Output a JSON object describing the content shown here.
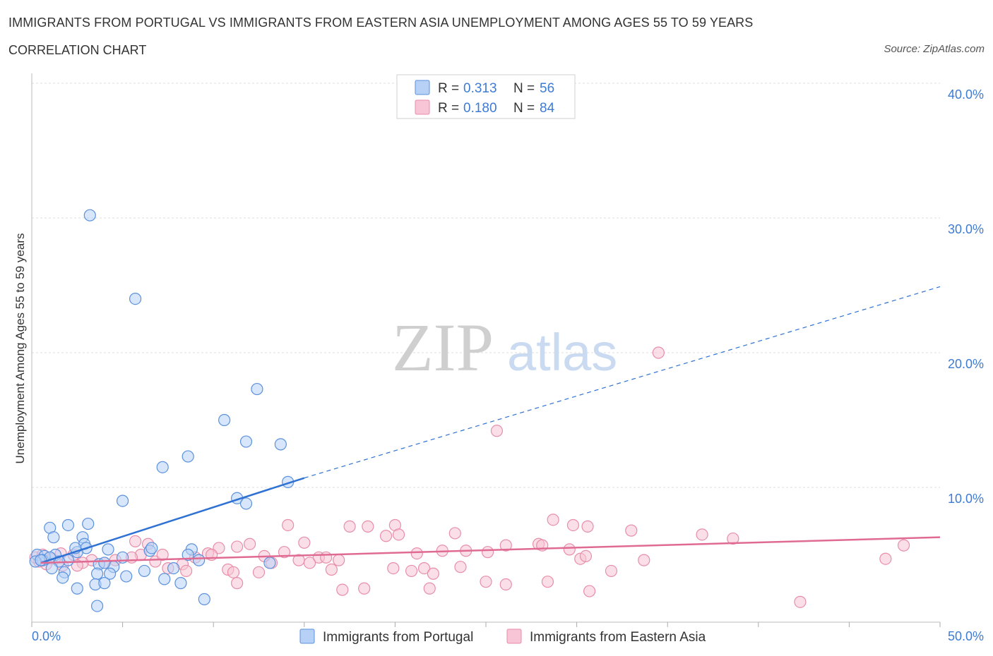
{
  "header": {
    "title": "IMMIGRANTS FROM PORTUGAL VS IMMIGRANTS FROM EASTERN ASIA UNEMPLOYMENT AMONG AGES 55 TO 59 YEARS",
    "subtitle": "CORRELATION CHART",
    "source": "Source: ZipAtlas.com"
  },
  "watermark": {
    "zip": "ZIP",
    "atlas": "atlas"
  },
  "colors": {
    "blue_fill": "#b6d1f5",
    "blue_stroke": "#5b91dd",
    "blue_line": "#2f72d3",
    "pink_fill": "#f7c5d5",
    "pink_stroke": "#e88ea9",
    "pink_line": "#e06b92",
    "axis_label": "#3e7bd4",
    "grid": "#dddddd"
  },
  "legend": {
    "r_label": "R =",
    "n_label": "N =",
    "rows": [
      {
        "r": "0.313",
        "n": "56"
      },
      {
        "r": "0.180",
        "n": "84"
      }
    ]
  },
  "chart_data": {
    "type": "scatter",
    "title": "IMMIGRANTS FROM PORTUGAL VS IMMIGRANTS FROM EASTERN ASIA UNEMPLOYMENT AMONG AGES 55 TO 59 YEARS",
    "xlabel": "",
    "ylabel": "Unemployment Among Ages 55 to 59 years",
    "xlim": [
      0,
      50
    ],
    "ylim": [
      0,
      40
    ],
    "x_tick_labels": [
      "0.0%",
      "50.0%"
    ],
    "y_tick_labels": [
      "10.0%",
      "20.0%",
      "30.0%",
      "40.0%"
    ],
    "y_gridlines": [
      10,
      20,
      30,
      40
    ],
    "grid": true,
    "legend_position": "top-center",
    "series": [
      {
        "name": "Immigrants from Portugal",
        "color": "#5b91dd",
        "trend": {
          "x": [
            0.5,
            15.0,
            50.0
          ],
          "y": [
            4.4,
            10.7,
            24.9
          ]
        },
        "points": [
          [
            3.2,
            30.2
          ],
          [
            5.7,
            24.0
          ],
          [
            12.4,
            17.3
          ],
          [
            10.6,
            15.0
          ],
          [
            11.8,
            13.4
          ],
          [
            13.7,
            13.2
          ],
          [
            8.6,
            12.3
          ],
          [
            7.2,
            11.5
          ],
          [
            14.1,
            10.4
          ],
          [
            11.3,
            9.2
          ],
          [
            11.8,
            8.8
          ],
          [
            5.0,
            9.0
          ],
          [
            2.0,
            7.2
          ],
          [
            3.1,
            7.3
          ],
          [
            1.0,
            7.0
          ],
          [
            1.2,
            6.3
          ],
          [
            2.8,
            6.3
          ],
          [
            2.9,
            5.8
          ],
          [
            3.0,
            5.5
          ],
          [
            4.2,
            5.4
          ],
          [
            6.5,
            5.3
          ],
          [
            8.8,
            5.4
          ],
          [
            2.5,
            5.2
          ],
          [
            1.3,
            5.0
          ],
          [
            0.3,
            5.0
          ],
          [
            0.7,
            4.9
          ],
          [
            2.0,
            4.6
          ],
          [
            0.6,
            4.6
          ],
          [
            1.5,
            4.5
          ],
          [
            0.2,
            4.5
          ],
          [
            3.7,
            4.3
          ],
          [
            1.1,
            4.0
          ],
          [
            4.5,
            4.1
          ],
          [
            7.8,
            4.0
          ],
          [
            6.2,
            3.8
          ],
          [
            1.8,
            3.7
          ],
          [
            4.3,
            3.6
          ],
          [
            3.6,
            3.6
          ],
          [
            13.1,
            4.4
          ],
          [
            5.2,
            3.4
          ],
          [
            1.7,
            3.3
          ],
          [
            7.3,
            3.2
          ],
          [
            3.5,
            2.8
          ],
          [
            4.0,
            2.9
          ],
          [
            8.2,
            2.9
          ],
          [
            2.5,
            2.5
          ],
          [
            3.6,
            1.2
          ],
          [
            9.5,
            1.7
          ],
          [
            2.4,
            5.5
          ],
          [
            6.6,
            5.5
          ],
          [
            8.6,
            5.0
          ],
          [
            1.0,
            4.8
          ],
          [
            0.5,
            4.6
          ],
          [
            5.0,
            4.8
          ],
          [
            9.2,
            4.6
          ],
          [
            4.0,
            4.4
          ]
        ]
      },
      {
        "name": "Immigrants from Eastern Asia",
        "color": "#e88ea9",
        "trend": {
          "x": [
            0.5,
            50.0
          ],
          "y": [
            4.4,
            6.3
          ]
        },
        "points": [
          [
            34.5,
            20.0
          ],
          [
            25.6,
            14.2
          ],
          [
            28.7,
            7.6
          ],
          [
            29.8,
            7.2
          ],
          [
            33.0,
            6.8
          ],
          [
            36.9,
            6.5
          ],
          [
            38.6,
            6.2
          ],
          [
            48.0,
            5.7
          ],
          [
            47.0,
            4.7
          ],
          [
            33.7,
            4.6
          ],
          [
            31.9,
            3.8
          ],
          [
            30.7,
            2.3
          ],
          [
            42.3,
            1.5
          ],
          [
            14.1,
            7.2
          ],
          [
            17.5,
            7.1
          ],
          [
            18.5,
            7.1
          ],
          [
            20.0,
            7.2
          ],
          [
            23.3,
            6.6
          ],
          [
            19.5,
            6.4
          ],
          [
            20.2,
            6.5
          ],
          [
            12.0,
            5.8
          ],
          [
            15.0,
            5.9
          ],
          [
            21.2,
            5.1
          ],
          [
            22.6,
            5.3
          ],
          [
            23.9,
            5.3
          ],
          [
            25.1,
            5.2
          ],
          [
            26.1,
            5.7
          ],
          [
            27.9,
            5.8
          ],
          [
            28.1,
            5.7
          ],
          [
            29.6,
            5.4
          ],
          [
            30.2,
            4.7
          ],
          [
            30.5,
            4.9
          ],
          [
            11.3,
            5.6
          ],
          [
            10.3,
            5.5
          ],
          [
            9.7,
            5.1
          ],
          [
            9.0,
            4.8
          ],
          [
            13.9,
            5.2
          ],
          [
            15.8,
            4.8
          ],
          [
            16.2,
            4.8
          ],
          [
            16.9,
            4.6
          ],
          [
            14.7,
            4.6
          ],
          [
            15.3,
            4.4
          ],
          [
            19.9,
            4.0
          ],
          [
            20.9,
            3.8
          ],
          [
            21.6,
            4.0
          ],
          [
            22.1,
            3.6
          ],
          [
            23.6,
            4.1
          ],
          [
            16.5,
            3.9
          ],
          [
            12.5,
            3.7
          ],
          [
            10.8,
            3.9
          ],
          [
            11.1,
            3.7
          ],
          [
            8.3,
            4.3
          ],
          [
            8.5,
            3.8
          ],
          [
            6.8,
            4.5
          ],
          [
            7.5,
            4.0
          ],
          [
            6.0,
            5.0
          ],
          [
            5.7,
            6.0
          ],
          [
            6.4,
            5.8
          ],
          [
            7.2,
            5.0
          ],
          [
            5.5,
            4.8
          ],
          [
            4.6,
            4.6
          ],
          [
            4.0,
            4.4
          ],
          [
            3.3,
            4.6
          ],
          [
            2.8,
            4.4
          ],
          [
            2.3,
            5.0
          ],
          [
            1.6,
            5.1
          ],
          [
            1.1,
            4.7
          ],
          [
            0.8,
            4.3
          ],
          [
            0.4,
            4.5
          ],
          [
            0.2,
            4.8
          ],
          [
            0.6,
            5.0
          ],
          [
            1.7,
            4.2
          ],
          [
            2.5,
            4.2
          ],
          [
            13.2,
            4.4
          ],
          [
            12.8,
            4.9
          ],
          [
            9.9,
            5.0
          ],
          [
            18.3,
            2.5
          ],
          [
            17.1,
            2.4
          ],
          [
            21.9,
            2.5
          ],
          [
            26.1,
            2.8
          ],
          [
            28.4,
            3.0
          ],
          [
            25.0,
            3.0
          ],
          [
            30.6,
            7.1
          ],
          [
            11.3,
            2.9
          ]
        ]
      }
    ]
  },
  "bottom_legend": {
    "items": [
      "Immigrants from Portugal",
      "Immigrants from Eastern Asia"
    ]
  }
}
